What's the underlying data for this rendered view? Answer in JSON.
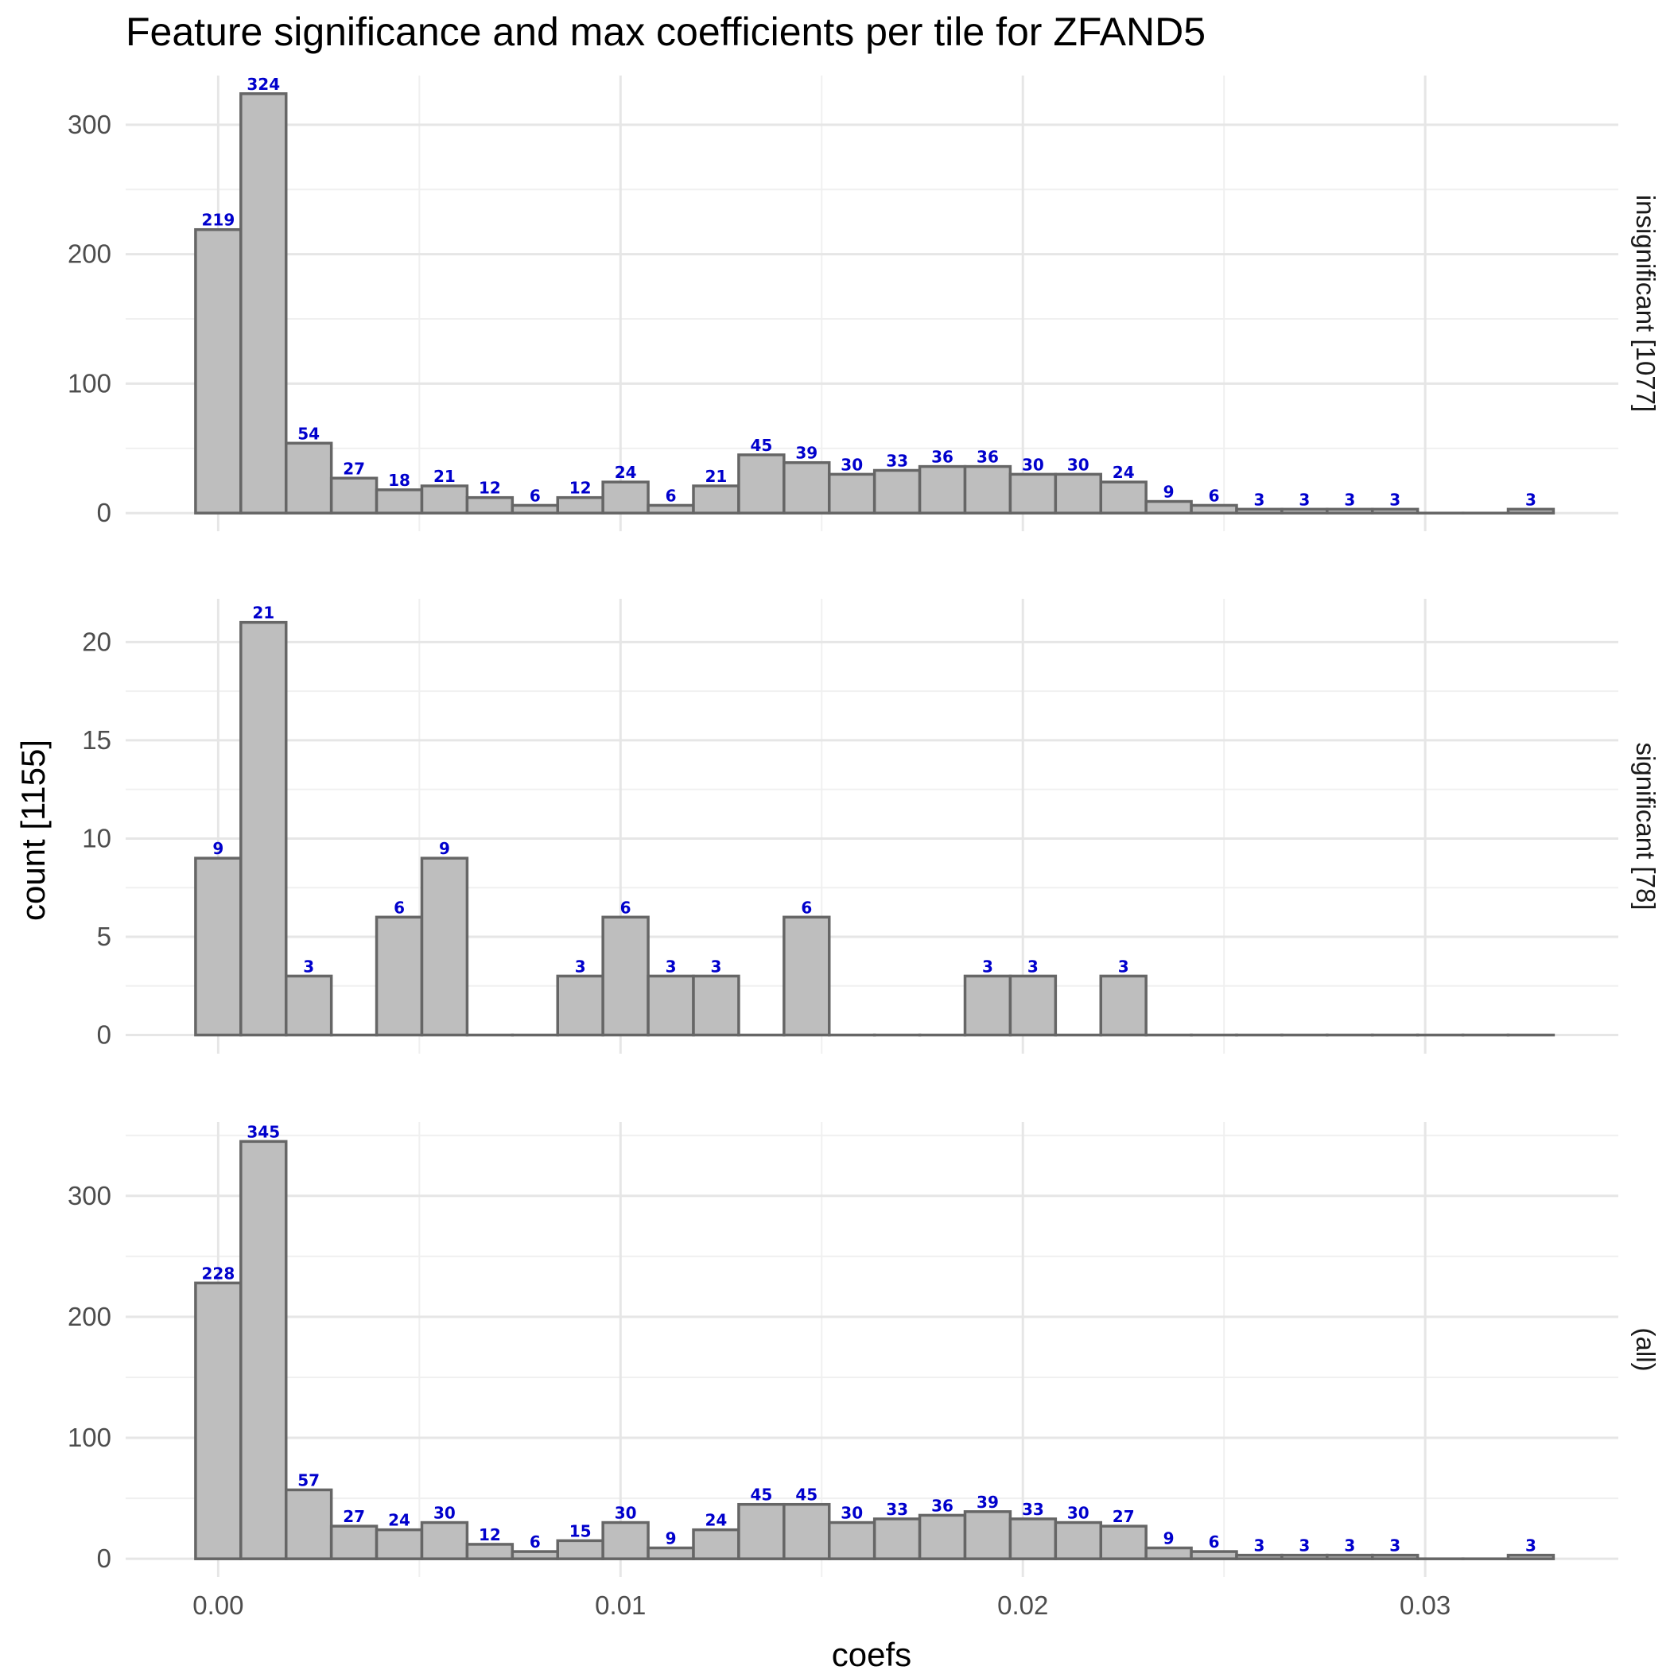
{
  "chart_data": {
    "type": "bar",
    "title": "Feature significance and max coefficients per tile for ZFAND5",
    "xlabel": "coefs",
    "ylabel": "count [1155]",
    "xlim": [
      -0.0023,
      0.0348
    ],
    "x_ticks": [
      0.0,
      0.01,
      0.02,
      0.03
    ],
    "x_tick_labels": [
      "0.00",
      "0.01",
      "0.02",
      "0.03"
    ],
    "bin_width": 0.001125,
    "bin_start": -0.0005625,
    "grid": true,
    "label_color": "#0000cc",
    "bar_fill": "#bebebe",
    "bar_stroke": "#666666",
    "panels": [
      {
        "strip": "insignificant [1077]",
        "ylim": [
          -14,
          338
        ],
        "y_ticks": [
          0,
          100,
          200,
          300
        ],
        "values": [
          219,
          324,
          54,
          27,
          18,
          21,
          12,
          6,
          12,
          24,
          6,
          21,
          45,
          39,
          30,
          33,
          36,
          36,
          30,
          30,
          24,
          9,
          6,
          3,
          3,
          3,
          3,
          0,
          0,
          3
        ]
      },
      {
        "strip": "significant [78]",
        "ylim": [
          -0.95,
          22.2
        ],
        "y_ticks": [
          0,
          5,
          10,
          15,
          20
        ],
        "values": [
          9,
          21,
          3,
          0,
          6,
          9,
          0,
          0,
          3,
          6,
          3,
          3,
          0,
          6,
          0,
          0,
          0,
          3,
          3,
          0,
          3,
          0,
          0,
          0,
          0,
          0,
          0,
          0,
          0,
          0
        ]
      },
      {
        "strip": "(all)",
        "ylim": [
          -15,
          361
        ],
        "y_ticks": [
          0,
          100,
          200,
          300
        ],
        "values": [
          228,
          345,
          57,
          27,
          24,
          30,
          12,
          6,
          15,
          30,
          9,
          24,
          45,
          45,
          30,
          33,
          36,
          39,
          33,
          30,
          27,
          9,
          6,
          3,
          3,
          3,
          3,
          0,
          0,
          3
        ]
      }
    ]
  }
}
